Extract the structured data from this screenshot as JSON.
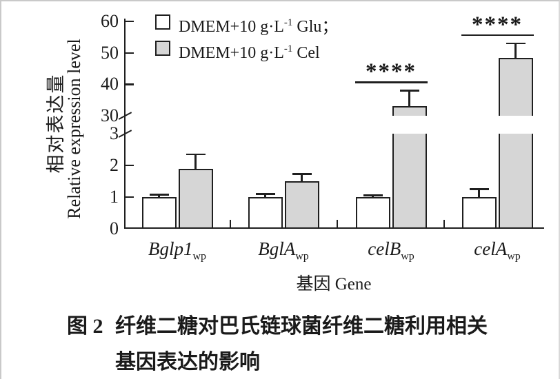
{
  "caption": {
    "fig_label": "图 2",
    "line1": "纤维二糖对巴氏链球菌纤维二糖利用相关",
    "line2": "基因表达的影响"
  },
  "chart_data": {
    "type": "bar",
    "title": "",
    "xlabel": "基因 Gene",
    "ylabel_zh": "相对表达量",
    "ylabel_en": "Relative expression level",
    "broken_axis": true,
    "ylim_lower": [
      0,
      3
    ],
    "ylim_upper": [
      30,
      60
    ],
    "y_axis": {
      "lower_ticks": [
        0,
        1,
        2,
        3
      ],
      "upper_ticks": [
        30,
        40,
        50,
        60
      ]
    },
    "grid": false,
    "legend_position": "top-left",
    "legend": [
      {
        "pre": "DMEM+10 g·L",
        "sup": "-1",
        "post": " Glu；"
      },
      {
        "pre": "DMEM+10 g·L",
        "sup": "-1",
        "post": " Cel"
      }
    ],
    "categories": [
      {
        "base": "Bglp1",
        "sub": "wp"
      },
      {
        "base": "BglA",
        "sub": "wp"
      },
      {
        "base": "celB",
        "sub": "wp"
      },
      {
        "base": "celA",
        "sub": "wp"
      }
    ],
    "series": [
      {
        "name": "DMEM+10 g·L-1 Glu",
        "fill": "#ffffff",
        "values": [
          1.0,
          1.0,
          1.0,
          1.0
        ],
        "errors": [
          0.07,
          0.1,
          0.05,
          0.25
        ]
      },
      {
        "name": "DMEM+10 g·L-1 Cel",
        "fill": "#d6d6d6",
        "values": [
          1.9,
          1.5,
          33,
          48.5
        ],
        "errors": [
          0.45,
          0.22,
          5,
          4.5
        ]
      }
    ],
    "significance": [
      {
        "category_index": 2,
        "label": "****"
      },
      {
        "category_index": 3,
        "label": "****"
      }
    ],
    "colors": {
      "line": "#1f1f1f",
      "bar_gray": "#d6d6d6",
      "bar_white": "#ffffff"
    }
  }
}
